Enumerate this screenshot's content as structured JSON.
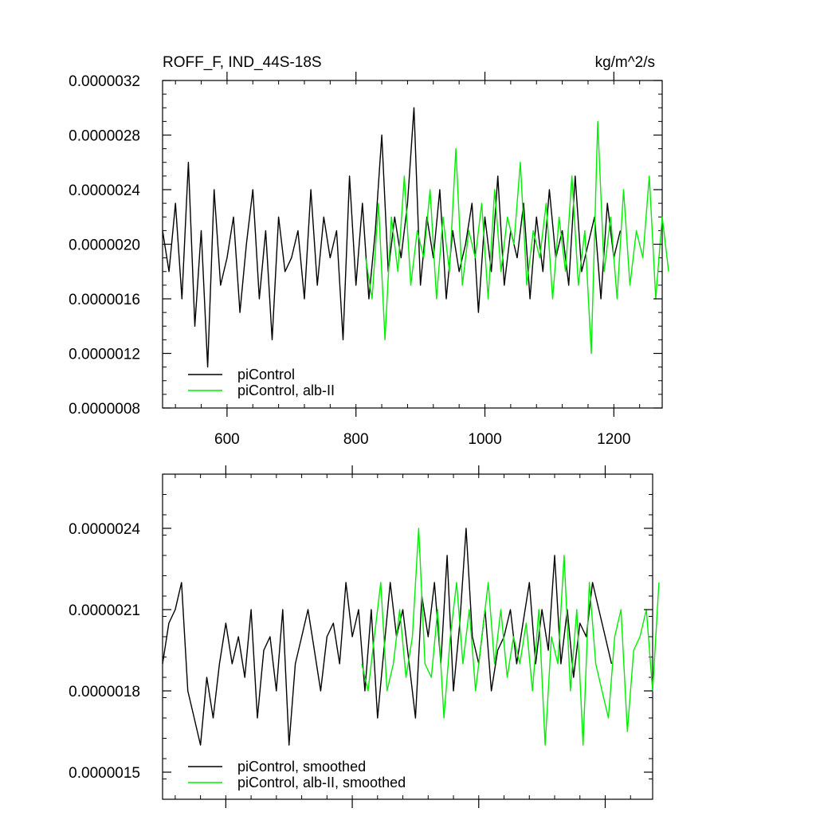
{
  "chart_data": [
    {
      "type": "line",
      "title": "ROFF_F, IND_44S-18S",
      "units": "kg/m^2/s",
      "xlim": [
        500,
        1275
      ],
      "ylim": [
        8e-07,
        3.2e-06
      ],
      "xticks": [
        600,
        800,
        1000,
        1200
      ],
      "xtick_labels": [
        "600",
        "800",
        "1000",
        "1200"
      ],
      "yticks": [
        8e-07,
        1.2e-06,
        1.6e-06,
        2e-06,
        2.4e-06,
        2.8e-06,
        3.2e-06
      ],
      "ytick_labels": [
        "0.0000008",
        "0.0000012",
        "0.0000016",
        "0.0000020",
        "0.0000024",
        "0.0000028",
        "0.0000032"
      ],
      "legend_position": "bottom-left",
      "series": [
        {
          "name": "piControl",
          "color": "#000000",
          "x_start": 500,
          "x_step": 10,
          "y": [
            2.1e-06,
            1.8e-06,
            2.3e-06,
            1.6e-06,
            2.6e-06,
            1.4e-06,
            2.1e-06,
            1.1e-06,
            2.4e-06,
            1.7e-06,
            1.9e-06,
            2.2e-06,
            1.5e-06,
            2e-06,
            2.4e-06,
            1.6e-06,
            2.1e-06,
            1.3e-06,
            2.2e-06,
            1.8e-06,
            1.9e-06,
            2.1e-06,
            1.6e-06,
            2.4e-06,
            1.7e-06,
            2.2e-06,
            1.9e-06,
            2.1e-06,
            1.3e-06,
            2.5e-06,
            1.7e-06,
            2.3e-06,
            1.6e-06,
            2.1e-06,
            2.8e-06,
            1.8e-06,
            2.2e-06,
            1.9e-06,
            2.3e-06,
            3e-06,
            1.7e-06,
            2.2e-06,
            1.9e-06,
            2.4e-06,
            1.6e-06,
            2.1e-06,
            1.8e-06,
            2e-06,
            2.3e-06,
            1.5e-06,
            2.2e-06,
            1.8e-06,
            2.5e-06,
            1.7e-06,
            2.1e-06,
            1.9e-06,
            2.3e-06,
            1.6e-06,
            2.2e-06,
            1.8e-06,
            2.4e-06,
            1.9e-06,
            2.1e-06,
            1.7e-06,
            2.5e-06,
            1.8e-06,
            2e-06,
            2.2e-06,
            1.6e-06,
            2.3e-06,
            1.9e-06,
            2.1e-06
          ]
        },
        {
          "name": "piControl, alb-II",
          "color": "#00ee00",
          "x_start": 815,
          "x_step": 10,
          "y": [
            1.9e-06,
            1.6e-06,
            2.3e-06,
            1.3e-06,
            2.2e-06,
            1.8e-06,
            2.5e-06,
            1.7e-06,
            2.1e-06,
            1.9e-06,
            2.4e-06,
            1.6e-06,
            2.2e-06,
            1.8e-06,
            2.7e-06,
            1.7e-06,
            2.1e-06,
            1.9e-06,
            2.3e-06,
            1.6e-06,
            2.4e-06,
            1.8e-06,
            2.2e-06,
            2e-06,
            2.6e-06,
            1.7e-06,
            2.1e-06,
            1.9e-06,
            2.3e-06,
            1.6e-06,
            2.2e-06,
            1.8e-06,
            2.5e-06,
            1.7e-06,
            2.1e-06,
            1.2e-06,
            2.9e-06,
            1.8e-06,
            2.2e-06,
            1.6e-06,
            2.4e-06,
            1.7e-06,
            2.1e-06,
            1.9e-06,
            2.5e-06,
            1.6e-06,
            2.2e-06,
            1.8e-06
          ]
        }
      ]
    },
    {
      "type": "line",
      "xlim": [
        500,
        1275
      ],
      "ylim": [
        1.4e-06,
        2.6e-06
      ],
      "xticks": [
        600,
        800,
        1000,
        1200
      ],
      "yticks": [
        1.5e-06,
        1.8e-06,
        2.1e-06,
        2.4e-06
      ],
      "ytick_labels": [
        "0.0000015",
        "0.0000018",
        "0.0000021",
        "0.0000024"
      ],
      "legend_position": "bottom-left",
      "series": [
        {
          "name": "piControl, smoothed",
          "color": "#000000",
          "x_start": 500,
          "x_step": 10,
          "y": [
            1.9e-06,
            2.05e-06,
            2.1e-06,
            2.2e-06,
            1.8e-06,
            1.7e-06,
            1.6e-06,
            1.85e-06,
            1.7e-06,
            1.9e-06,
            2.05e-06,
            1.9e-06,
            2e-06,
            1.85e-06,
            2.1e-06,
            1.7e-06,
            1.95e-06,
            2e-06,
            1.8e-06,
            2.1e-06,
            1.6e-06,
            1.9e-06,
            2e-06,
            2.1e-06,
            1.95e-06,
            1.8e-06,
            2e-06,
            2.05e-06,
            1.9e-06,
            2.2e-06,
            2e-06,
            2.1e-06,
            1.8e-06,
            2.1e-06,
            1.7e-06,
            1.95e-06,
            2.2e-06,
            2e-06,
            2.1e-06,
            1.9e-06,
            1.7e-06,
            2.15e-06,
            2e-06,
            2.2e-06,
            1.9e-06,
            2.3e-06,
            1.8e-06,
            2.05e-06,
            2.4e-06,
            2e-06,
            1.9e-06,
            2.1e-06,
            1.8e-06,
            1.95e-06,
            2e-06,
            2.1e-06,
            1.9e-06,
            2.05e-06,
            2.2e-06,
            1.9e-06,
            2.1e-06,
            1.95e-06,
            2.3e-06,
            1.9e-06,
            2.1e-06,
            1.85e-06,
            2.05e-06,
            2e-06,
            2.2e-06,
            2.1e-06,
            2e-06,
            1.9e-06
          ]
        },
        {
          "name": "piControl, alb-II, smoothed",
          "color": "#00ee00",
          "x_start": 815,
          "x_step": 10,
          "y": [
            1.9e-06,
            1.8e-06,
            2e-06,
            2.2e-06,
            1.8e-06,
            1.9e-06,
            2.1e-06,
            1.85e-06,
            2e-06,
            2.4e-06,
            1.9e-06,
            1.85e-06,
            2.1e-06,
            1.7e-06,
            2e-06,
            2.2e-06,
            1.9e-06,
            2.1e-06,
            1.8e-06,
            2e-06,
            2.2e-06,
            1.9e-06,
            2.1e-06,
            1.85e-06,
            2e-06,
            1.9e-06,
            2.05e-06,
            1.8e-06,
            2.1e-06,
            1.6e-06,
            2e-06,
            1.9e-06,
            2.3e-06,
            1.8e-06,
            2.1e-06,
            1.6e-06,
            2.2e-06,
            1.9e-06,
            1.8e-06,
            1.7e-06,
            2e-06,
            2.1e-06,
            1.65e-06,
            1.95e-06,
            2e-06,
            2.1e-06,
            1.8e-06,
            2.2e-06
          ]
        }
      ]
    }
  ]
}
